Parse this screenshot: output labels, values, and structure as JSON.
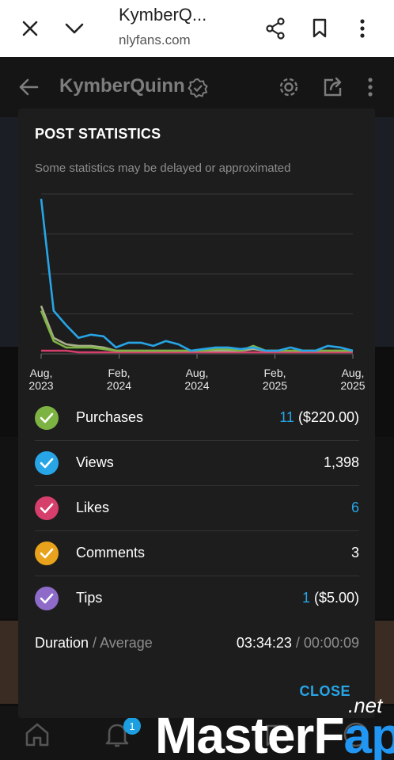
{
  "browser": {
    "title": "KymberQ...",
    "url": "nlyfans.com",
    "icons": [
      "close-icon",
      "chevron-down-icon",
      "share-icon",
      "bookmark-icon",
      "more-vertical-icon"
    ]
  },
  "app_header": {
    "title": "KymberQuinn",
    "icons": [
      "back-arrow-icon",
      "verified-icon",
      "gear-icon",
      "share-icon",
      "more-vertical-icon"
    ]
  },
  "bottom_nav": {
    "icons": [
      "home-icon",
      "bell-icon",
      "message-icon",
      "avatar-icon"
    ],
    "notification_count": "1"
  },
  "dialog": {
    "title": "POST STATISTICS",
    "subtitle": "Some statistics may be delayed or approximated",
    "close_label": "CLOSE"
  },
  "stats": [
    {
      "label": "Purchases",
      "count": "11",
      "extra": " ($220.00)",
      "color": "#7cb342",
      "count_highlight": true
    },
    {
      "label": "Views",
      "count": "1,398",
      "extra": "",
      "color": "#27a5e6",
      "count_highlight": false
    },
    {
      "label": "Likes",
      "count": "6",
      "extra": "",
      "color": "#d63e6c",
      "count_highlight": true
    },
    {
      "label": "Comments",
      "count": "3",
      "extra": "",
      "color": "#e9a21c",
      "count_highlight": false
    },
    {
      "label": "Tips",
      "count": "1",
      "extra": " ($5.00)",
      "color": "#8e6bc8",
      "count_highlight": true
    }
  ],
  "duration": {
    "label": "Duration",
    "separator": " / ",
    "label2": "Average",
    "total": "03:34:23",
    "average": "00:00:09"
  },
  "watermark": {
    "brand_part1": "Master",
    "brand_part2": "F",
    "brand_part3": "ap",
    "suffix": ".net"
  },
  "chart_data": {
    "type": "line",
    "x_tick_labels": [
      "Aug,\n2023",
      "Feb,\n2024",
      "Aug,\n2024",
      "Feb,\n2025",
      "Aug,\n2025"
    ],
    "x": [
      0,
      1,
      2,
      3,
      4,
      5,
      6,
      7,
      8,
      9,
      10,
      11,
      12,
      13,
      14,
      15,
      16,
      17,
      18,
      19,
      20,
      21,
      22,
      23,
      24,
      25
    ],
    "ylim": [
      0,
      100
    ],
    "grid": true,
    "series": [
      {
        "color": "#27a5e6",
        "values": [
          97,
          27,
          18,
          10,
          12,
          11,
          4,
          7,
          7,
          5,
          8,
          6,
          2,
          3,
          4,
          4,
          3,
          4,
          2,
          2,
          4,
          2,
          2,
          5,
          4,
          2
        ]
      },
      {
        "color": "#7cb342",
        "values": [
          27,
          8,
          4,
          4,
          4,
          3,
          2,
          2,
          2,
          2,
          2,
          2,
          2,
          2,
          3,
          3,
          2,
          5,
          2,
          2,
          2,
          2,
          2,
          2,
          2,
          2
        ]
      },
      {
        "color": "#aab08a",
        "values": [
          30,
          10,
          6,
          5,
          5,
          4,
          2,
          2,
          2,
          2,
          2,
          2,
          2,
          2,
          2,
          2,
          2,
          3,
          2,
          2,
          2,
          2,
          2,
          2,
          2,
          2
        ]
      },
      {
        "color": "#d63e6c",
        "values": [
          2,
          2,
          2,
          1,
          1,
          1,
          1,
          1,
          1,
          1,
          1,
          1,
          1,
          1,
          1,
          1,
          1,
          1,
          1,
          1,
          1,
          1,
          1,
          1,
          1,
          1
        ]
      }
    ]
  }
}
